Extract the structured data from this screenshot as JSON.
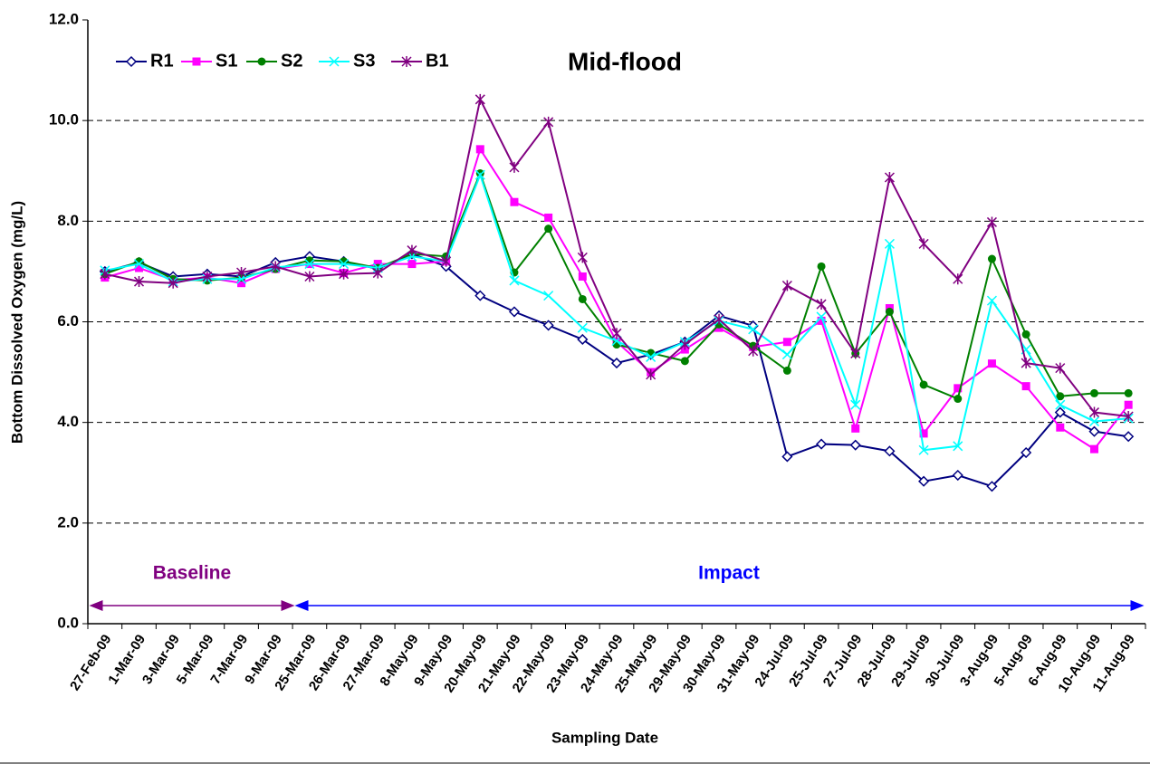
{
  "chart_data": {
    "type": "line",
    "title": "Mid-flood",
    "y_label": "Bottom Dissolved Oxygen (mg/L)",
    "x_label": "Sampling Date",
    "annotations": [
      "Baseline",
      "Impact"
    ],
    "categories": [
      "27-Feb-09",
      "1-Mar-09",
      "3-Mar-09",
      "5-Mar-09",
      "7-Mar-09",
      "9-Mar-09",
      "25-Mar-09",
      "26-Mar-09",
      "27-Mar-09",
      "8-May-09",
      "9-May-09",
      "20-May-09",
      "21-May-09",
      "22-May-09",
      "23-May-09",
      "24-May-09",
      "25-May-09",
      "29-May-09",
      "30-May-09",
      "31-May-09",
      "24-Jul-09",
      "25-Jul-09",
      "27-Jul-09",
      "28-Jul-09",
      "29-Jul-09",
      "30-Jul-09",
      "3-Aug-09",
      "5-Aug-09",
      "6-Aug-09",
      "10-Aug-09",
      "11-Aug-09"
    ],
    "series": [
      {
        "name": "R1",
        "color": "#000080",
        "marker": "diamond",
        "values": [
          7.0,
          7.18,
          6.9,
          6.95,
          6.9,
          7.18,
          7.3,
          7.2,
          7.05,
          7.35,
          7.1,
          6.52,
          6.2,
          5.93,
          5.65,
          5.18,
          5.35,
          5.6,
          6.12,
          5.92,
          3.32,
          3.57,
          3.55,
          3.43,
          2.83,
          2.95,
          2.73,
          3.4,
          4.2,
          3.82,
          3.72
        ]
      },
      {
        "name": "S1",
        "color": "#ff00ff",
        "marker": "square",
        "values": [
          6.88,
          7.07,
          6.83,
          6.88,
          6.77,
          7.05,
          7.15,
          6.97,
          7.15,
          7.15,
          7.2,
          9.43,
          8.38,
          8.07,
          6.9,
          5.6,
          5.0,
          5.45,
          5.88,
          5.5,
          5.6,
          6.02,
          3.88,
          6.27,
          3.78,
          4.68,
          5.17,
          4.72,
          3.9,
          3.47,
          4.35
        ]
      },
      {
        "name": "S2",
        "color": "#008000",
        "marker": "circle",
        "values": [
          6.95,
          7.2,
          6.85,
          6.82,
          6.88,
          7.05,
          7.22,
          7.2,
          7.07,
          7.35,
          7.3,
          8.95,
          6.98,
          7.85,
          6.45,
          5.55,
          5.38,
          5.22,
          5.95,
          5.52,
          5.03,
          7.1,
          5.37,
          6.2,
          4.75,
          4.47,
          7.25,
          5.75,
          4.52,
          4.58,
          4.58
        ]
      },
      {
        "name": "S3",
        "color": "#00ffff",
        "marker": "x",
        "values": [
          7.02,
          7.15,
          6.8,
          6.85,
          6.85,
          7.08,
          7.15,
          7.15,
          7.07,
          7.3,
          7.2,
          8.92,
          6.82,
          6.52,
          5.88,
          5.62,
          5.3,
          5.6,
          6.02,
          5.85,
          5.35,
          6.1,
          4.35,
          7.55,
          3.45,
          3.53,
          6.42,
          5.45,
          4.35,
          4.02,
          4.08
        ]
      },
      {
        "name": "B1",
        "color": "#800080",
        "marker": "star",
        "values": [
          6.95,
          6.8,
          6.77,
          6.9,
          6.98,
          7.1,
          6.9,
          6.95,
          6.97,
          7.42,
          7.2,
          10.42,
          9.07,
          9.97,
          7.28,
          5.77,
          4.95,
          5.55,
          6.05,
          5.42,
          6.72,
          6.35,
          5.37,
          8.87,
          7.55,
          6.85,
          7.98,
          5.18,
          5.08,
          4.2,
          4.12
        ]
      }
    ],
    "ylim": [
      0,
      12
    ],
    "yticks": [
      {
        "value": 0,
        "label": "0.0"
      },
      {
        "value": 2,
        "label": "2.0"
      },
      {
        "value": 4,
        "label": "4.0"
      },
      {
        "value": 6,
        "label": "6.0"
      },
      {
        "value": 8,
        "label": "8.0"
      },
      {
        "value": 10,
        "label": "10.0"
      },
      {
        "value": 12,
        "label": "12.0"
      }
    ],
    "grid": true,
    "legend": "upper-left"
  }
}
